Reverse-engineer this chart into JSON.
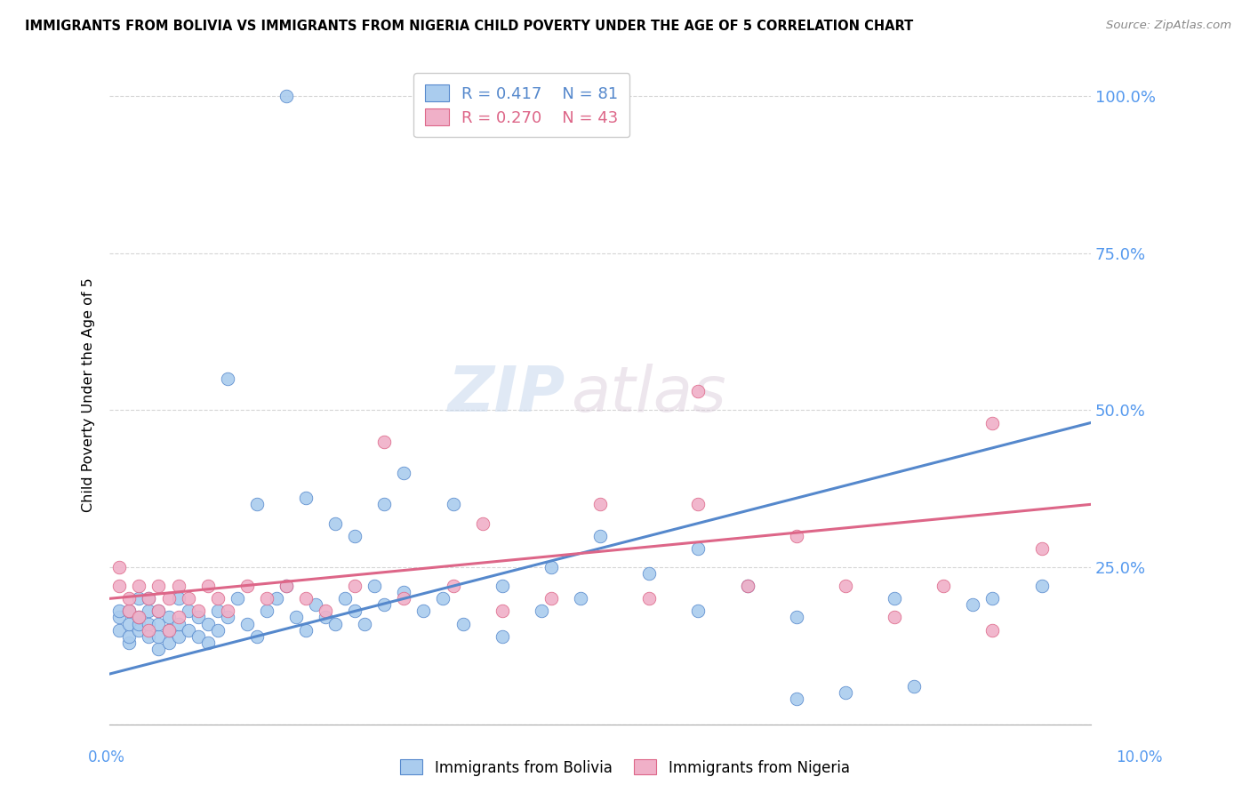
{
  "title": "IMMIGRANTS FROM BOLIVIA VS IMMIGRANTS FROM NIGERIA CHILD POVERTY UNDER THE AGE OF 5 CORRELATION CHART",
  "source": "Source: ZipAtlas.com",
  "ylabel": "Child Poverty Under the Age of 5",
  "right_yticks": [
    "100.0%",
    "75.0%",
    "50.0%",
    "25.0%"
  ],
  "right_ytick_vals": [
    1.0,
    0.75,
    0.5,
    0.25
  ],
  "bolivia_color": "#aaccee",
  "nigeria_color": "#f0b0c8",
  "bolivia_line_color": "#5588cc",
  "nigeria_line_color": "#dd6688",
  "watermark_zip": "ZIP",
  "watermark_atlas": "atlas",
  "xlim": [
    0.0,
    0.1
  ],
  "ylim": [
    0.0,
    1.05
  ],
  "bolivia_trend_x": [
    0.0,
    0.1
  ],
  "bolivia_trend_y": [
    0.08,
    0.48
  ],
  "nigeria_trend_x": [
    0.0,
    0.1
  ],
  "nigeria_trend_y": [
    0.2,
    0.35
  ],
  "bolivia_x": [
    0.001,
    0.001,
    0.001,
    0.002,
    0.002,
    0.002,
    0.002,
    0.003,
    0.003,
    0.003,
    0.003,
    0.004,
    0.004,
    0.004,
    0.004,
    0.005,
    0.005,
    0.005,
    0.005,
    0.006,
    0.006,
    0.006,
    0.007,
    0.007,
    0.007,
    0.008,
    0.008,
    0.009,
    0.009,
    0.01,
    0.01,
    0.011,
    0.011,
    0.012,
    0.013,
    0.014,
    0.015,
    0.016,
    0.017,
    0.018,
    0.019,
    0.02,
    0.021,
    0.022,
    0.023,
    0.024,
    0.025,
    0.026,
    0.027,
    0.028,
    0.03,
    0.032,
    0.034,
    0.036,
    0.04,
    0.044,
    0.048,
    0.055,
    0.06,
    0.065,
    0.07,
    0.075,
    0.082,
    0.09,
    0.095,
    0.02,
    0.023,
    0.025,
    0.028,
    0.03,
    0.035,
    0.04,
    0.045,
    0.05,
    0.06,
    0.07,
    0.08,
    0.088,
    0.012,
    0.015,
    0.018
  ],
  "bolivia_y": [
    0.15,
    0.17,
    0.18,
    0.13,
    0.14,
    0.16,
    0.18,
    0.15,
    0.16,
    0.17,
    0.2,
    0.14,
    0.16,
    0.18,
    0.2,
    0.12,
    0.14,
    0.16,
    0.18,
    0.13,
    0.15,
    0.17,
    0.14,
    0.16,
    0.2,
    0.15,
    0.18,
    0.14,
    0.17,
    0.13,
    0.16,
    0.15,
    0.18,
    0.17,
    0.2,
    0.16,
    0.14,
    0.18,
    0.2,
    0.22,
    0.17,
    0.15,
    0.19,
    0.17,
    0.16,
    0.2,
    0.18,
    0.16,
    0.22,
    0.19,
    0.21,
    0.18,
    0.2,
    0.16,
    0.14,
    0.18,
    0.2,
    0.24,
    0.28,
    0.22,
    0.17,
    0.05,
    0.06,
    0.2,
    0.22,
    0.36,
    0.32,
    0.3,
    0.35,
    0.4,
    0.35,
    0.22,
    0.25,
    0.3,
    0.18,
    0.04,
    0.2,
    0.19,
    0.55,
    0.35,
    1.0
  ],
  "nigeria_x": [
    0.001,
    0.001,
    0.002,
    0.002,
    0.003,
    0.003,
    0.004,
    0.004,
    0.005,
    0.005,
    0.006,
    0.006,
    0.007,
    0.007,
    0.008,
    0.009,
    0.01,
    0.011,
    0.012,
    0.014,
    0.016,
    0.018,
    0.02,
    0.022,
    0.025,
    0.03,
    0.035,
    0.04,
    0.05,
    0.055,
    0.06,
    0.065,
    0.07,
    0.075,
    0.08,
    0.085,
    0.09,
    0.095,
    0.028,
    0.038,
    0.045,
    0.06,
    0.09
  ],
  "nigeria_y": [
    0.22,
    0.25,
    0.18,
    0.2,
    0.17,
    0.22,
    0.15,
    0.2,
    0.18,
    0.22,
    0.15,
    0.2,
    0.22,
    0.17,
    0.2,
    0.18,
    0.22,
    0.2,
    0.18,
    0.22,
    0.2,
    0.22,
    0.2,
    0.18,
    0.22,
    0.2,
    0.22,
    0.18,
    0.35,
    0.2,
    0.35,
    0.22,
    0.3,
    0.22,
    0.17,
    0.22,
    0.15,
    0.28,
    0.45,
    0.32,
    0.2,
    0.53,
    0.48
  ]
}
